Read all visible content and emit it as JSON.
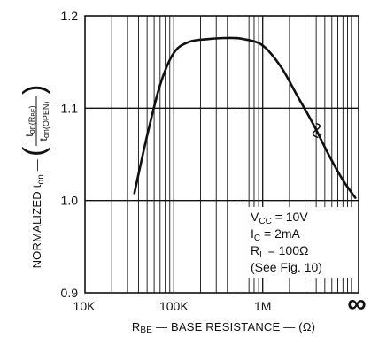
{
  "chart_data": {
    "type": "line",
    "xscale": "log",
    "xlim": [
      10000,
      12000000
    ],
    "ylim": [
      0.9,
      1.2
    ],
    "x_tick_labels": [
      "10K",
      "100K",
      "1M",
      "∞"
    ],
    "y_tick_labels": [
      "0.9",
      "1.0",
      "1.1",
      "1.2"
    ],
    "y_ticks": [
      0.9,
      1.0,
      1.1,
      1.2
    ],
    "xlabel": {
      "main": "R",
      "sub": "BE",
      "rest": " — BASE RESISTANCE — (Ω)"
    },
    "ylabel": {
      "prefix": "NORMALIZED t",
      "prefix_sub": "on",
      "dash": " — ",
      "num": "t",
      "num_sub": "on(R",
      "num_sub2": "BE",
      "num_close": ")",
      "den": "t",
      "den_sub": "on(OPEN)"
    },
    "grid": true,
    "annotations": [
      {
        "main": "V",
        "sub": "CC",
        "rest": " = 10V"
      },
      {
        "main": "I",
        "sub": "C",
        "rest": " = 2mA"
      },
      {
        "main": "R",
        "sub": "L",
        "rest": " = 100Ω"
      },
      {
        "main": "(See Fig. 10)",
        "sub": "",
        "rest": ""
      }
    ],
    "series": [
      {
        "x": [
          36000,
          50000,
          70000,
          100000,
          150000,
          250000,
          400000,
          600000,
          1000000,
          1600000,
          2400000,
          3600000,
          5500000,
          8000000,
          11000000
        ],
        "y": [
          1.008,
          1.07,
          1.125,
          1.16,
          1.172,
          1.175,
          1.176,
          1.175,
          1.168,
          1.145,
          1.115,
          1.085,
          1.05,
          1.022,
          1.003
        ]
      }
    ]
  }
}
